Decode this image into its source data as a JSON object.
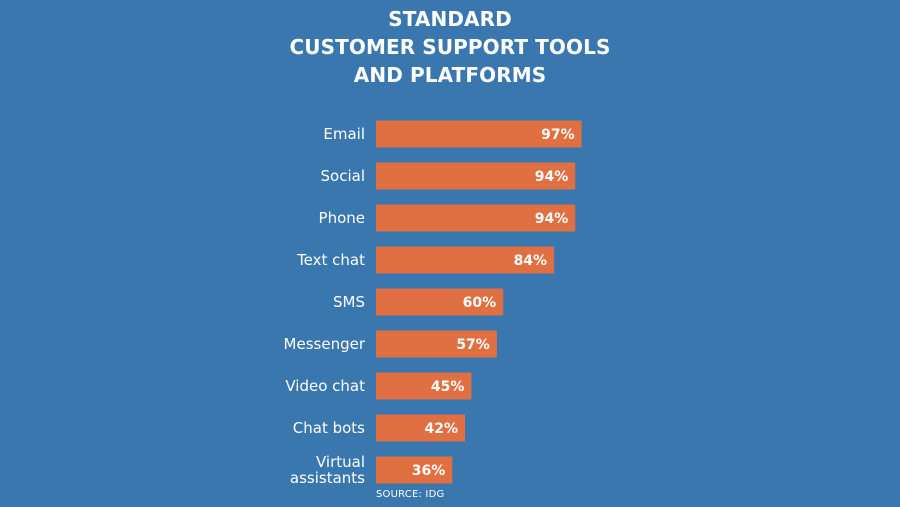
{
  "chart_data": {
    "type": "bar",
    "orientation": "horizontal",
    "title_lines": [
      "STANDARD",
      "CUSTOMER SUPPORT TOOLS",
      "AND PLATFORMS"
    ],
    "categories": [
      "Email",
      "Social",
      "Phone",
      "Text chat",
      "SMS",
      "Messenger",
      "Video chat",
      "Chat bots",
      "Virtual assistants"
    ],
    "category_lines": [
      [
        "Email"
      ],
      [
        "Social"
      ],
      [
        "Phone"
      ],
      [
        "Text chat"
      ],
      [
        "SMS"
      ],
      [
        "Messenger"
      ],
      [
        "Video chat"
      ],
      [
        "Chat bots"
      ],
      [
        "Virtual",
        "assistants"
      ]
    ],
    "values": [
      97,
      94,
      94,
      84,
      60,
      57,
      45,
      42,
      36
    ],
    "value_labels": [
      "97%",
      "94%",
      "94%",
      "84%",
      "60%",
      "57%",
      "45%",
      "42%",
      "36%"
    ],
    "xlim": [
      0,
      100
    ],
    "grid": false,
    "legend": "none",
    "source": "SOURCE: IDG",
    "colors": {
      "background": "#3a77ae",
      "bar": "#e07042",
      "text": "#ffffff"
    }
  }
}
